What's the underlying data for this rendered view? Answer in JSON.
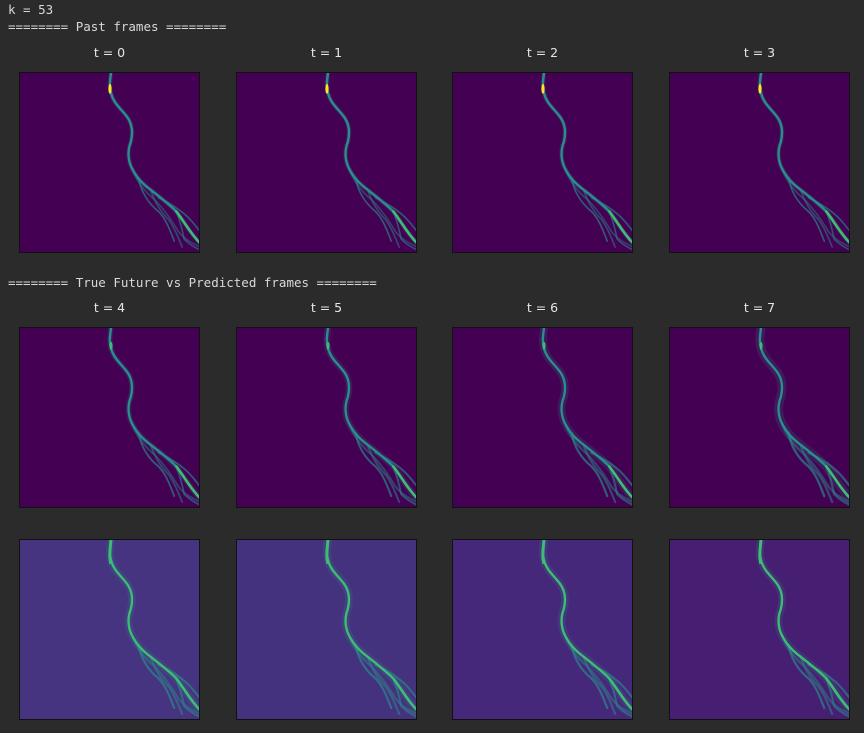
{
  "output": {
    "k_line": "k = 53",
    "past_header": "======== Past frames ========",
    "future_header": "======== True Future vs Predicted frames ========"
  },
  "past_frames": [
    {
      "title": "t = 0"
    },
    {
      "title": "t = 1"
    },
    {
      "title": "t = 2"
    },
    {
      "title": "t = 3"
    }
  ],
  "true_future_frames": [
    {
      "title": "t = 4"
    },
    {
      "title": "t = 5"
    },
    {
      "title": "t = 6"
    },
    {
      "title": "t = 7"
    }
  ],
  "predicted_frames": [
    {},
    {},
    {},
    {}
  ],
  "colors": {
    "page_bg": "#2b2b2b",
    "true_bg": "#440154",
    "pred_bg": [
      "#463480",
      "#45327e",
      "#46287a",
      "#461f72"
    ],
    "stream": "#2a8e8c",
    "stream_bright": "#3fbc73",
    "peak": "#fde725"
  }
}
